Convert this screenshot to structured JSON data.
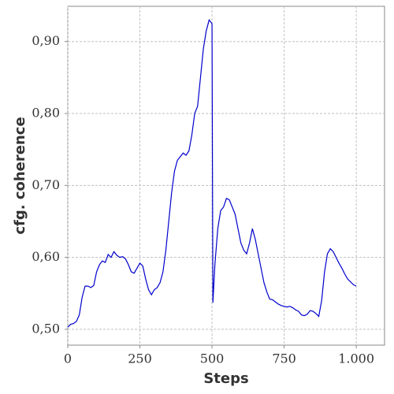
{
  "chart_data": {
    "type": "line",
    "xlabel": "Steps",
    "ylabel": "cfg. coherence",
    "xlim": [
      0,
      1098
    ],
    "ylim": [
      0.478,
      0.949
    ],
    "xticks": [
      0,
      250,
      500,
      750,
      {
        "value": 1000,
        "label": "1.000"
      }
    ],
    "yticks": [
      {
        "value": 0.5,
        "label": "0,50"
      },
      {
        "value": 0.6,
        "label": "0,60"
      },
      {
        "value": 0.7,
        "label": "0,70"
      },
      {
        "value": 0.8,
        "label": "0,80"
      },
      {
        "value": 0.9,
        "label": "0,90"
      }
    ],
    "grid": true,
    "series": [
      {
        "color": "#0000cc",
        "x": [
          0,
          10,
          20,
          30,
          40,
          50,
          60,
          70,
          80,
          90,
          100,
          110,
          120,
          130,
          140,
          150,
          160,
          170,
          180,
          190,
          200,
          210,
          220,
          230,
          240,
          250,
          260,
          270,
          280,
          290,
          300,
          310,
          320,
          330,
          340,
          350,
          360,
          370,
          380,
          390,
          400,
          410,
          420,
          430,
          440,
          450,
          460,
          470,
          480,
          490,
          500,
          503,
          510,
          520,
          530,
          540,
          550,
          560,
          570,
          580,
          590,
          600,
          610,
          620,
          630,
          640,
          650,
          660,
          670,
          680,
          690,
          700,
          710,
          720,
          730,
          740,
          750,
          760,
          770,
          780,
          790,
          800,
          810,
          820,
          830,
          840,
          850,
          860,
          870,
          880,
          890,
          900,
          910,
          920,
          930,
          940,
          950,
          960,
          970,
          980,
          990,
          1000
        ],
        "values": [
          0.503,
          0.507,
          0.508,
          0.511,
          0.52,
          0.545,
          0.56,
          0.56,
          0.558,
          0.561,
          0.58,
          0.59,
          0.595,
          0.593,
          0.604,
          0.6,
          0.608,
          0.603,
          0.6,
          0.601,
          0.598,
          0.59,
          0.58,
          0.578,
          0.585,
          0.592,
          0.588,
          0.57,
          0.555,
          0.548,
          0.555,
          0.558,
          0.565,
          0.58,
          0.61,
          0.65,
          0.69,
          0.72,
          0.735,
          0.74,
          0.745,
          0.742,
          0.748,
          0.77,
          0.8,
          0.81,
          0.85,
          0.89,
          0.915,
          0.93,
          0.925,
          0.537,
          0.59,
          0.64,
          0.665,
          0.67,
          0.682,
          0.68,
          0.67,
          0.66,
          0.64,
          0.62,
          0.61,
          0.605,
          0.62,
          0.64,
          0.625,
          0.605,
          0.585,
          0.565,
          0.552,
          0.542,
          0.541,
          0.538,
          0.535,
          0.533,
          0.532,
          0.531,
          0.532,
          0.53,
          0.527,
          0.525,
          0.52,
          0.519,
          0.521,
          0.526,
          0.525,
          0.522,
          0.518,
          0.54,
          0.58,
          0.605,
          0.612,
          0.608,
          0.6,
          0.592,
          0.585,
          0.577,
          0.57,
          0.566,
          0.562,
          0.56
        ]
      }
    ]
  }
}
